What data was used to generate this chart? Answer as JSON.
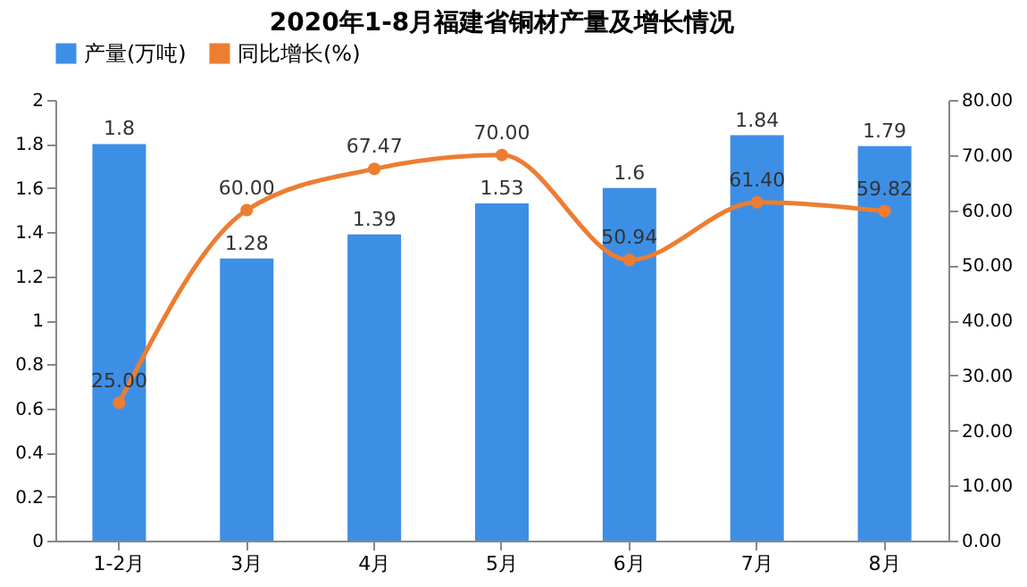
{
  "chart_data": {
    "type": "bar",
    "title": "2020年1-8月福建省铜材产量及增长情况",
    "categories": [
      "1-2月",
      "3月",
      "4月",
      "5月",
      "6月",
      "7月",
      "8月"
    ],
    "series": [
      {
        "name": "产量(万吨)",
        "color": "#3d8fe6",
        "values": [
          1.8,
          1.28,
          1.39,
          1.53,
          1.6,
          1.84,
          1.79
        ],
        "value_labels": [
          "1.8",
          "1.28",
          "1.39",
          "1.53",
          "1.6",
          "1.84",
          "1.79"
        ]
      },
      {
        "name": "同比增长(%)",
        "type": "line",
        "axis": "y2",
        "color": "#ed7d31",
        "values": [
          25.0,
          60.0,
          67.47,
          70.0,
          50.94,
          61.4,
          59.82
        ],
        "value_labels": [
          "25.00",
          "60.00",
          "67.47",
          "70.00",
          "50.94",
          "61.40",
          "59.82"
        ]
      }
    ],
    "ylim": [
      0,
      2
    ],
    "yticks": [
      0,
      0.2,
      0.4,
      0.6,
      0.8,
      1,
      1.2,
      1.4,
      1.6,
      1.8,
      2
    ],
    "y2lim": [
      0,
      80
    ],
    "y2ticks": [
      {
        "value": 0,
        "label": "0.00"
      },
      {
        "value": 10,
        "label": "10.00"
      },
      {
        "value": 20,
        "label": "20.00"
      },
      {
        "value": 30,
        "label": "30.00"
      },
      {
        "value": 40,
        "label": "40.00"
      },
      {
        "value": 50,
        "label": "50.00"
      },
      {
        "value": 60,
        "label": "60.00"
      },
      {
        "value": 70,
        "label": "70.00"
      },
      {
        "value": 80,
        "label": "80.00"
      }
    ],
    "grid": false,
    "legend": "top",
    "marker": "circle"
  }
}
